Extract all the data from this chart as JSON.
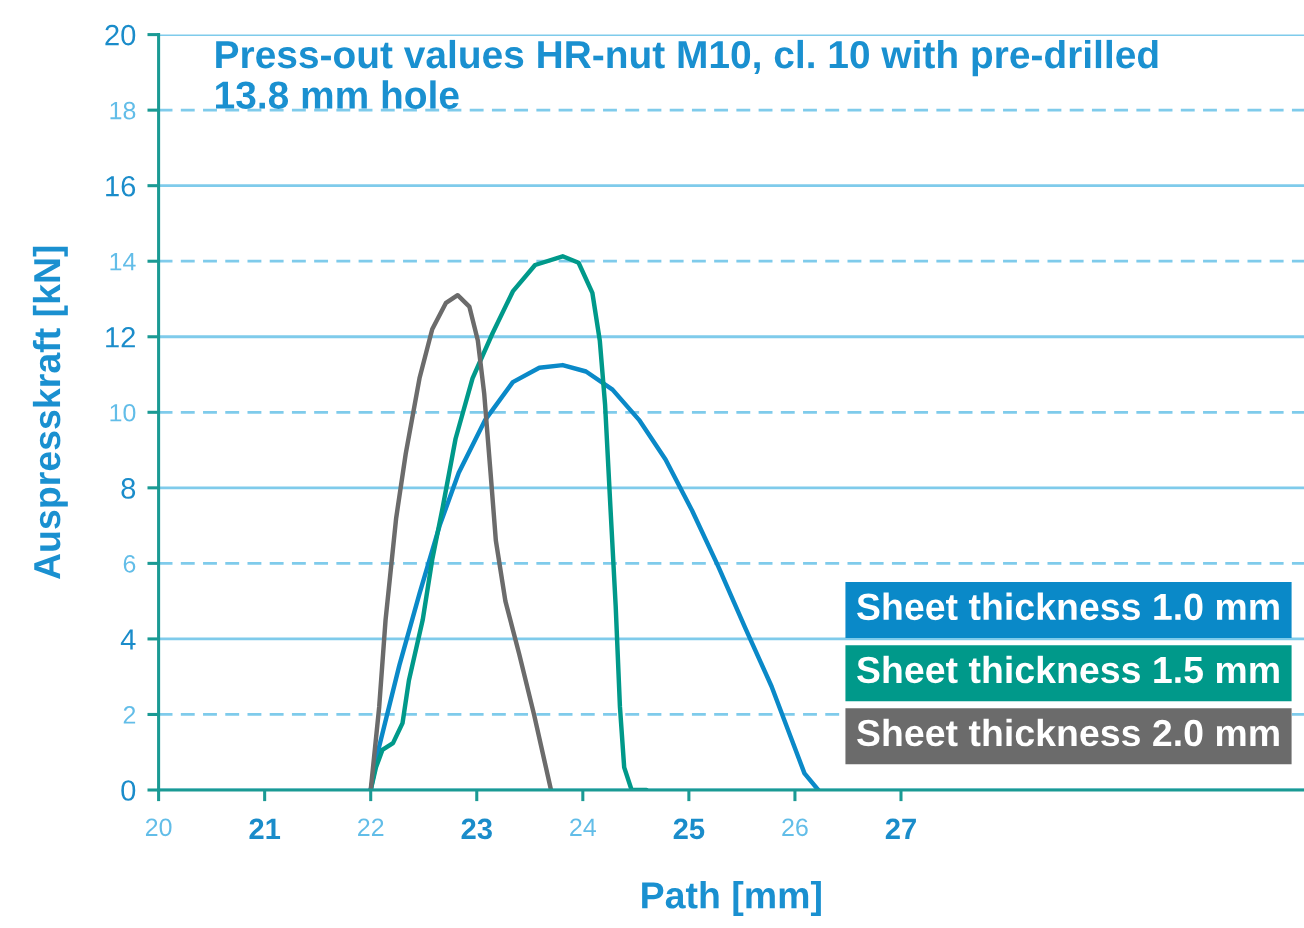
{
  "chart_data": {
    "type": "line",
    "title": "Press-out values HR-nut M10, cl. 10 with pre-drilled 13.8 mm hole",
    "xlabel": "Path [mm]",
    "ylabel": "Auspresskraft [kN]",
    "xlim": [
      20,
      30.8
    ],
    "xticks": [
      20,
      21,
      22,
      23,
      24,
      25,
      26,
      27
    ],
    "ylim": [
      0,
      20
    ],
    "yticks": [
      0,
      2,
      4,
      6,
      8,
      10,
      12,
      14,
      16,
      18,
      20
    ],
    "grid": "y",
    "legend": "bottom right",
    "series": [
      {
        "name": "Sheet thickness 1.0 mm",
        "color": "#0a89c8",
        "x": [
          22.0,
          22.08,
          22.27,
          22.46,
          22.65,
          22.83,
          23.08,
          23.34,
          23.59,
          23.81,
          24.03,
          24.28,
          24.53,
          24.78,
          25.03,
          25.28,
          25.53,
          25.78,
          25.97,
          26.09,
          26.22
        ],
        "values": [
          0,
          1.15,
          3.3,
          5.2,
          7.0,
          8.4,
          9.8,
          10.8,
          11.18,
          11.25,
          11.08,
          10.6,
          9.8,
          8.75,
          7.4,
          5.9,
          4.3,
          2.74,
          1.33,
          0.44,
          0
        ]
      },
      {
        "name": "Sheet thickness 1.5 mm",
        "color": "#00998a",
        "x": [
          22.0,
          22.05,
          22.11,
          22.21,
          22.3,
          22.36,
          22.49,
          22.58,
          22.68,
          22.8,
          22.96,
          23.15,
          23.34,
          23.55,
          23.81,
          23.96,
          24.09,
          24.16,
          24.21,
          24.26,
          24.31,
          24.35,
          24.39,
          24.46,
          24.6
        ],
        "values": [
          0,
          0.6,
          1.06,
          1.24,
          1.77,
          2.9,
          4.5,
          6.1,
          7.5,
          9.3,
          10.9,
          12.1,
          13.2,
          13.9,
          14.13,
          13.96,
          13.16,
          11.9,
          10.2,
          7.5,
          4.86,
          2.2,
          0.6,
          0,
          0
        ]
      },
      {
        "name": "Sheet thickness 2.0 mm",
        "color": "#6b6b6b",
        "x": [
          22.0,
          22.08,
          22.14,
          22.24,
          22.33,
          22.46,
          22.58,
          22.71,
          22.82,
          22.93,
          23.01,
          23.07,
          23.13,
          23.18,
          23.27,
          23.4,
          23.54,
          23.7
        ],
        "values": [
          0,
          2.2,
          4.5,
          7.2,
          8.9,
          10.9,
          12.2,
          12.9,
          13.1,
          12.8,
          11.9,
          10.5,
          8.4,
          6.6,
          5.0,
          3.6,
          2.0,
          0
        ]
      }
    ]
  }
}
